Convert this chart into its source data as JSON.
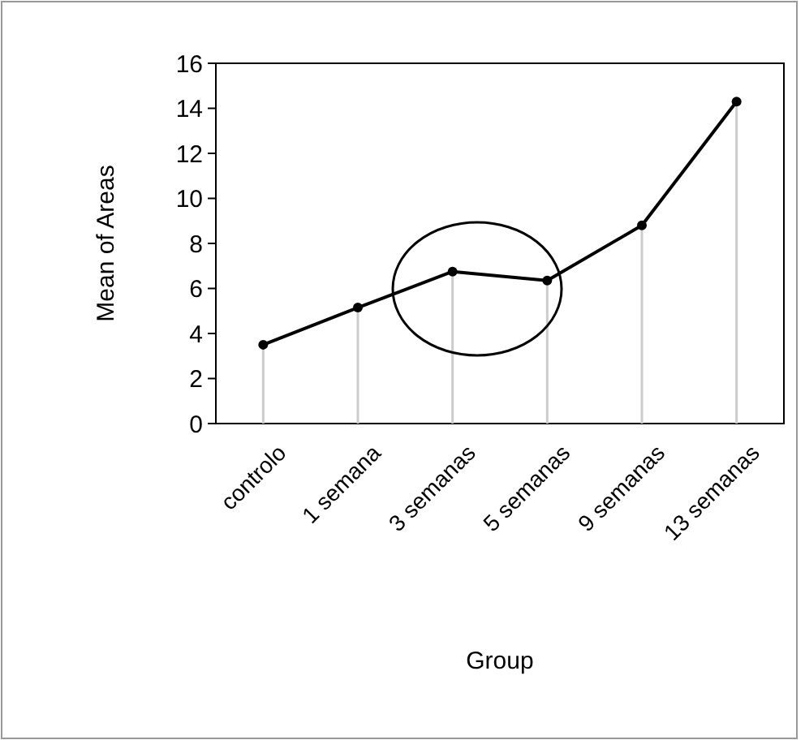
{
  "chart_data": {
    "type": "line",
    "xlabel": "Group",
    "ylabel": "Mean of Areas",
    "categories": [
      "controlo",
      "1 semana",
      "3 semanas",
      "5 semanas",
      "9 semanas",
      "13 semanas"
    ],
    "series": [
      {
        "type": "lollipop",
        "color": "#000000",
        "values": [
          3.5,
          5.15,
          6.75,
          6.35,
          8.8,
          14.3
        ]
      },
      {
        "color": "#000000",
        "values": [
          3.5,
          5.15,
          6.75,
          6.35,
          8.8,
          14.3
        ]
      }
    ],
    "ylim": [
      0,
      16
    ],
    "yticks": [
      0,
      2,
      4,
      6,
      8,
      10,
      12,
      14,
      16
    ],
    "line_style": "solid"
  }
}
